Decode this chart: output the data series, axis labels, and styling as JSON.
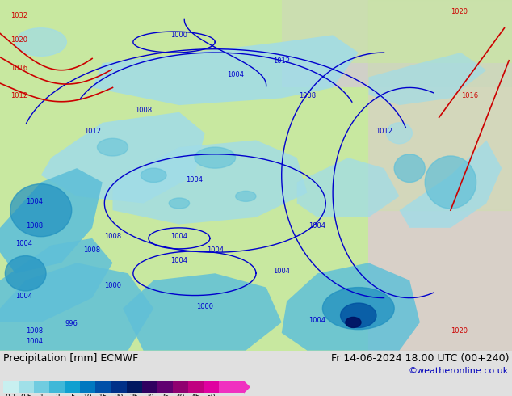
{
  "title_left": "Precipitation [mm] ECMWF",
  "title_right": "Fr 14-06-2024 18.00 UTC (00+240)",
  "credit": "©weatheronline.co.uk",
  "colorbar_values": [
    "0.1",
    "0.5",
    "1",
    "2",
    "5",
    "10",
    "15",
    "20",
    "25",
    "30",
    "35",
    "40",
    "45",
    "50"
  ],
  "colorbar_colors": [
    "#c8f0f0",
    "#a0e0e8",
    "#70cce0",
    "#40b8d8",
    "#10a0d0",
    "#0078c0",
    "#0050a8",
    "#003088",
    "#001860",
    "#300060",
    "#600070",
    "#900070",
    "#c00080",
    "#e000a0",
    "#f030c0"
  ],
  "land_color": "#c8e8a0",
  "land_color2": "#d8eab8",
  "sea_color": "#d0e8e8",
  "precip_light": "#a0dce8",
  "precip_med": "#60c0d8",
  "precip_dark": "#2090c0",
  "precip_heavy": "#0050a0",
  "precip_vheavy": "#001060",
  "fig_bg": "#e0e0e0",
  "blue_line": "#0000cc",
  "red_line": "#cc0000",
  "credit_color": "#0000bb",
  "title_fontsize": 9,
  "credit_fontsize": 8,
  "label_fontsize": 6
}
